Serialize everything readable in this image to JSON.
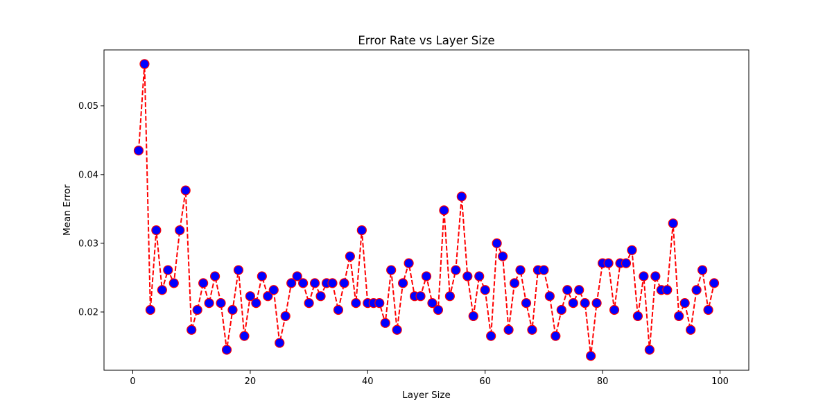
{
  "chart_data": {
    "type": "line",
    "title": "Error Rate vs Layer Size",
    "xlabel": "Layer Size",
    "ylabel": "Mean Error",
    "xlim": [
      -4.9,
      104.9
    ],
    "ylim": [
      0.01152,
      0.05815
    ],
    "xticks": [
      0,
      20,
      40,
      60,
      80,
      100
    ],
    "xtick_labels": [
      "0",
      "20",
      "40",
      "60",
      "80",
      "100"
    ],
    "yticks": [
      0.02,
      0.03,
      0.04,
      0.05
    ],
    "ytick_labels": [
      "0.02",
      "0.03",
      "0.04",
      "0.05"
    ],
    "grid": false,
    "legend": "none",
    "colors": {
      "line": "#ff0000",
      "marker_face": "#0000ff",
      "marker_edge": "#ff0000",
      "axes": "#000000",
      "background": "#ffffff"
    },
    "series": [
      {
        "line_style": "dashed",
        "marker": "circle",
        "x": [
          1,
          2,
          3,
          4,
          5,
          6,
          7,
          8,
          9,
          10,
          11,
          12,
          13,
          14,
          15,
          16,
          17,
          18,
          19,
          20,
          21,
          22,
          23,
          24,
          25,
          26,
          27,
          28,
          29,
          30,
          31,
          32,
          33,
          34,
          35,
          36,
          37,
          38,
          39,
          40,
          41,
          42,
          43,
          44,
          45,
          46,
          47,
          48,
          49,
          50,
          51,
          52,
          53,
          54,
          55,
          56,
          57,
          58,
          59,
          60,
          61,
          62,
          63,
          64,
          65,
          66,
          67,
          68,
          69,
          70,
          71,
          72,
          73,
          74,
          75,
          76,
          77,
          78,
          79,
          80,
          81,
          82,
          83,
          84,
          85,
          86,
          87,
          88,
          89,
          90,
          91,
          92,
          93,
          94,
          95,
          96,
          97,
          98,
          99
        ],
        "y": [
          0.0435,
          0.0561,
          0.0203,
          0.0319,
          0.0232,
          0.0261,
          0.0242,
          0.0319,
          0.0377,
          0.0174,
          0.0203,
          0.0242,
          0.0213,
          0.0252,
          0.0213,
          0.0145,
          0.0203,
          0.0261,
          0.0165,
          0.0223,
          0.0213,
          0.0252,
          0.0223,
          0.0232,
          0.0155,
          0.0194,
          0.0242,
          0.0252,
          0.0242,
          0.0213,
          0.0242,
          0.0223,
          0.0242,
          0.0242,
          0.0203,
          0.0242,
          0.0281,
          0.0213,
          0.0319,
          0.0213,
          0.0213,
          0.0213,
          0.0184,
          0.0261,
          0.0174,
          0.0242,
          0.0271,
          0.0223,
          0.0223,
          0.0252,
          0.0213,
          0.0203,
          0.0348,
          0.0223,
          0.0261,
          0.0368,
          0.0252,
          0.0194,
          0.0252,
          0.0232,
          0.0165,
          0.03,
          0.0281,
          0.0174,
          0.0242,
          0.0261,
          0.0213,
          0.0174,
          0.0261,
          0.0261,
          0.0223,
          0.0165,
          0.0203,
          0.0232,
          0.0213,
          0.0232,
          0.0213,
          0.0136,
          0.0213,
          0.0271,
          0.0271,
          0.0203,
          0.0271,
          0.0271,
          0.029,
          0.0194,
          0.0252,
          0.0145,
          0.0252,
          0.0232,
          0.0232,
          0.0329,
          0.0194,
          0.0213,
          0.0174,
          0.0232,
          0.0261,
          0.0203,
          0.0242
        ]
      }
    ]
  }
}
